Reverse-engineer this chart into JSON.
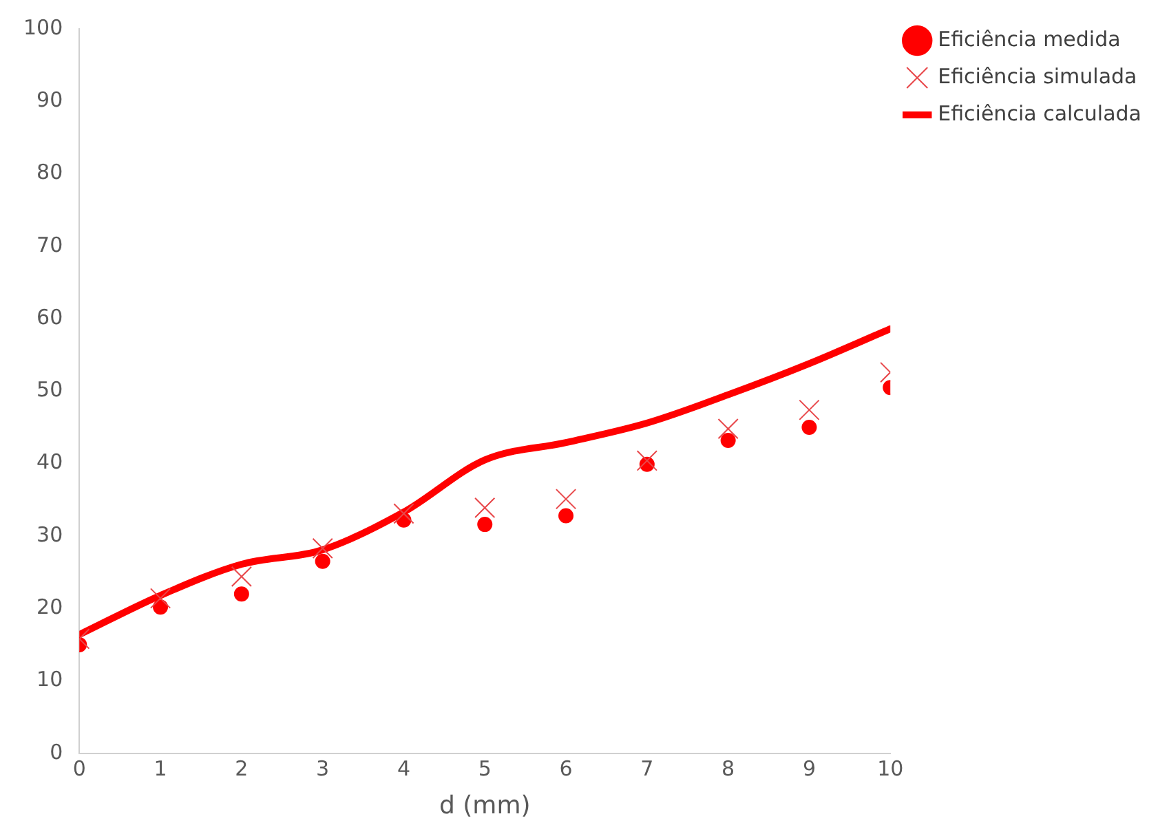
{
  "chart_data": {
    "type": "line",
    "xlabel": "d (mm)",
    "x": [
      0,
      1,
      2,
      3,
      4,
      5,
      6,
      7,
      8,
      9,
      10
    ],
    "series": [
      {
        "name": "Eficiência medida",
        "type": "scatter",
        "marker": "circle",
        "color": "#ff0000",
        "values": [
          15.0,
          20.2,
          22.0,
          26.5,
          32.2,
          31.6,
          32.8,
          39.9,
          43.2,
          45.0,
          50.5
        ]
      },
      {
        "name": "Eficiência simulada",
        "type": "scatter",
        "marker": "cross",
        "color": "#e8474a",
        "values": [
          15.8,
          21.4,
          24.4,
          28.3,
          33.1,
          33.9,
          35.1,
          40.4,
          44.8,
          47.4,
          52.6
        ]
      },
      {
        "name": "Eficiência calculada",
        "marker": "none",
        "color": "#ff0000",
        "values": [
          16.4,
          21.8,
          26.1,
          28.1,
          33.3,
          40.5,
          42.9,
          45.6,
          49.5,
          53.8,
          58.6
        ]
      }
    ],
    "xlim": [
      0,
      10
    ],
    "xticks": [
      0,
      1,
      2,
      3,
      4,
      5,
      6,
      7,
      8,
      9,
      10
    ],
    "ylim": [
      0,
      100
    ],
    "yticks": [
      0,
      10,
      20,
      30,
      40,
      50,
      60,
      70,
      80,
      90,
      100
    ],
    "grid": false,
    "legend": "top right"
  }
}
